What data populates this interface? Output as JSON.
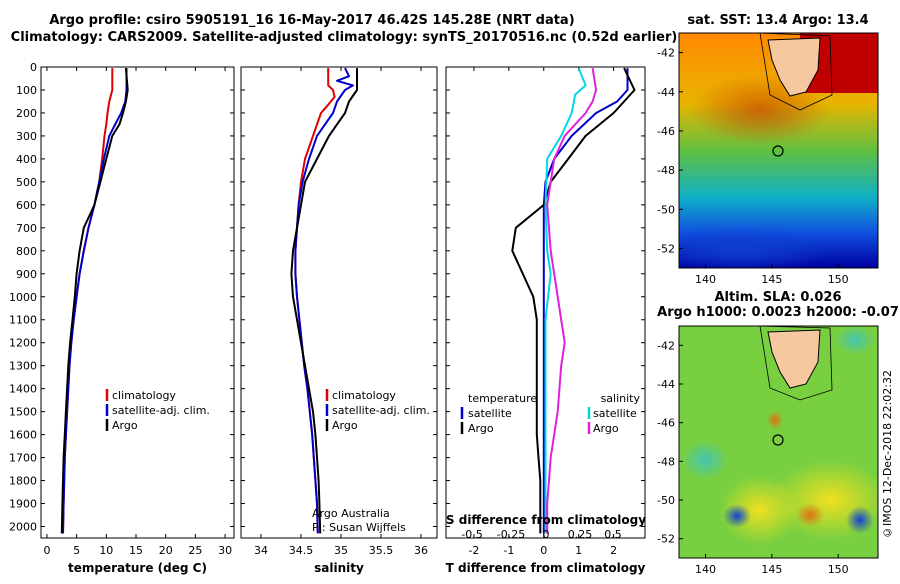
{
  "title_line1": "Argo profile: csiro 5905191_16 16-May-2017 46.42S 145.28E (NRT data)",
  "title_line2": "Climatology: CARS2009. Satellite-adjusted climatology: synTS_20170516.nc (0.52d earlier)",
  "credit": "©IMOS 12-Dec-2018 22:02:32",
  "attribution": [
    "Argo Australia",
    "PI: Susan Wijffels"
  ],
  "colors": {
    "climatology": "#e00000",
    "satellite": "#0000cc",
    "argo": "#000000",
    "sat_salinity": "#00d8e8",
    "argo_salinity": "#e020e0"
  },
  "chart_data": [
    {
      "type": "line",
      "id": "temperature",
      "xlabel": "temperature (deg C)",
      "ylim": [
        2050,
        0
      ],
      "xlim": [
        -1,
        31.5
      ],
      "xticks": [
        0,
        5,
        10,
        15,
        20,
        25,
        30
      ],
      "yticks": [
        0,
        100,
        200,
        300,
        400,
        500,
        600,
        700,
        800,
        900,
        1000,
        1100,
        1200,
        1300,
        1400,
        1500,
        1600,
        1700,
        1800,
        1900,
        2000
      ],
      "legend": [
        "climatology",
        "satellite-adj. clim.",
        "Argo"
      ],
      "series": [
        {
          "name": "climatology",
          "color": "#e00000",
          "points": [
            [
              11.0,
              5
            ],
            [
              11.0,
              50
            ],
            [
              11.0,
              100
            ],
            [
              10.5,
              150
            ],
            [
              10.2,
              200
            ],
            [
              10.0,
              250
            ],
            [
              9.7,
              300
            ],
            [
              9.3,
              400
            ],
            [
              8.8,
              500
            ],
            [
              8.0,
              600
            ],
            [
              7.0,
              700
            ],
            [
              6.2,
              800
            ],
            [
              5.5,
              900
            ],
            [
              5.0,
              1000
            ],
            [
              4.5,
              1100
            ],
            [
              4.1,
              1200
            ],
            [
              3.8,
              1300
            ],
            [
              3.6,
              1400
            ],
            [
              3.4,
              1500
            ],
            [
              3.2,
              1600
            ],
            [
              3.0,
              1700
            ],
            [
              2.9,
              1800
            ],
            [
              2.8,
              1900
            ],
            [
              2.7,
              2030
            ]
          ]
        },
        {
          "name": "satellite-adj. clim.",
          "color": "#0000cc",
          "points": [
            [
              13.4,
              5
            ],
            [
              13.4,
              50
            ],
            [
              13.4,
              100
            ],
            [
              13.2,
              150
            ],
            [
              12.5,
              200
            ],
            [
              11.5,
              250
            ],
            [
              10.5,
              300
            ],
            [
              9.6,
              400
            ],
            [
              8.8,
              500
            ],
            [
              8.0,
              600
            ],
            [
              7.0,
              700
            ],
            [
              6.2,
              800
            ],
            [
              5.5,
              900
            ],
            [
              5.0,
              1000
            ],
            [
              4.5,
              1100
            ],
            [
              4.1,
              1200
            ],
            [
              3.8,
              1300
            ],
            [
              3.6,
              1400
            ],
            [
              3.4,
              1500
            ],
            [
              3.2,
              1600
            ],
            [
              3.0,
              1700
            ],
            [
              2.9,
              1800
            ],
            [
              2.8,
              1900
            ],
            [
              2.7,
              2030
            ]
          ]
        },
        {
          "name": "Argo",
          "color": "#000000",
          "points": [
            [
              13.3,
              5
            ],
            [
              13.6,
              100
            ],
            [
              13.3,
              150
            ],
            [
              12.8,
              200
            ],
            [
              12.2,
              250
            ],
            [
              11.0,
              300
            ],
            [
              10.0,
              400
            ],
            [
              9.0,
              500
            ],
            [
              8.0,
              600
            ],
            [
              6.2,
              700
            ],
            [
              5.5,
              800
            ],
            [
              5.0,
              900
            ],
            [
              4.7,
              1000
            ],
            [
              4.3,
              1100
            ],
            [
              3.9,
              1200
            ],
            [
              3.6,
              1300
            ],
            [
              3.4,
              1400
            ],
            [
              3.2,
              1500
            ],
            [
              3.0,
              1600
            ],
            [
              2.8,
              1700
            ],
            [
              2.7,
              1800
            ],
            [
              2.6,
              1900
            ],
            [
              2.5,
              2030
            ]
          ]
        }
      ]
    },
    {
      "type": "line",
      "id": "salinity",
      "xlabel": "salinity",
      "ylim": [
        2050,
        0
      ],
      "xlim": [
        33.75,
        36.2
      ],
      "xticks": [
        34,
        34.5,
        35,
        35.5,
        36
      ],
      "xticklabels": [
        "34",
        "34.5",
        "35",
        "35.5",
        "36"
      ],
      "legend": [
        "climatology",
        "satellite-adj. clim.",
        "Argo"
      ],
      "series": [
        {
          "name": "climatology",
          "color": "#e00000",
          "points": [
            [
              34.84,
              5
            ],
            [
              34.84,
              80
            ],
            [
              34.9,
              100
            ],
            [
              34.92,
              130
            ],
            [
              34.85,
              160
            ],
            [
              34.75,
              200
            ],
            [
              34.65,
              300
            ],
            [
              34.55,
              400
            ],
            [
              34.5,
              500
            ],
            [
              34.47,
              600
            ],
            [
              34.45,
              700
            ],
            [
              34.43,
              800
            ],
            [
              34.43,
              900
            ],
            [
              34.45,
              1000
            ],
            [
              34.48,
              1100
            ],
            [
              34.51,
              1200
            ],
            [
              34.54,
              1300
            ],
            [
              34.58,
              1400
            ],
            [
              34.61,
              1500
            ],
            [
              34.64,
              1600
            ],
            [
              34.66,
              1700
            ],
            [
              34.68,
              1800
            ],
            [
              34.7,
              1900
            ],
            [
              34.71,
              2030
            ]
          ]
        },
        {
          "name": "satellite-adj. clim.",
          "color": "#0000cc",
          "points": [
            [
              35.05,
              5
            ],
            [
              35.1,
              40
            ],
            [
              34.95,
              60
            ],
            [
              35.15,
              80
            ],
            [
              35.05,
              100
            ],
            [
              34.95,
              150
            ],
            [
              34.9,
              200
            ],
            [
              34.7,
              300
            ],
            [
              34.6,
              400
            ],
            [
              34.52,
              500
            ],
            [
              34.47,
              600
            ],
            [
              34.45,
              700
            ],
            [
              34.43,
              800
            ],
            [
              34.43,
              900
            ],
            [
              34.45,
              1000
            ],
            [
              34.48,
              1100
            ],
            [
              34.51,
              1200
            ],
            [
              34.54,
              1300
            ],
            [
              34.58,
              1400
            ],
            [
              34.61,
              1500
            ],
            [
              34.64,
              1600
            ],
            [
              34.66,
              1700
            ],
            [
              34.68,
              1800
            ],
            [
              34.7,
              1900
            ],
            [
              34.71,
              2030
            ]
          ]
        },
        {
          "name": "Argo",
          "color": "#000000",
          "points": [
            [
              35.2,
              5
            ],
            [
              35.2,
              100
            ],
            [
              35.1,
              150
            ],
            [
              35.05,
              200
            ],
            [
              34.85,
              300
            ],
            [
              34.7,
              400
            ],
            [
              34.55,
              500
            ],
            [
              34.5,
              600
            ],
            [
              34.45,
              700
            ],
            [
              34.4,
              800
            ],
            [
              34.38,
              900
            ],
            [
              34.4,
              1000
            ],
            [
              34.45,
              1100
            ],
            [
              34.5,
              1200
            ],
            [
              34.55,
              1300
            ],
            [
              34.6,
              1400
            ],
            [
              34.65,
              1500
            ],
            [
              34.68,
              1600
            ],
            [
              34.7,
              1700
            ],
            [
              34.72,
              1800
            ],
            [
              34.73,
              1900
            ],
            [
              34.74,
              2030
            ]
          ]
        }
      ]
    },
    {
      "type": "line",
      "id": "difference",
      "xlabel": "T difference from climatology",
      "xlabel_top": "S difference from climatology",
      "ylim": [
        2050,
        0
      ],
      "xlim": [
        -2.8,
        2.9
      ],
      "xticks": [
        -2,
        -1,
        0,
        1,
        2
      ],
      "xticks_salinity": [
        "-0.5",
        "-0.25",
        "0",
        "0.25",
        "0.5"
      ],
      "legend_temperature": {
        "title": "temperature",
        "items": [
          "satellite",
          "Argo"
        ]
      },
      "legend_salinity": {
        "title": "salinity",
        "items": [
          "satellite",
          "Argo"
        ]
      },
      "series": [
        {
          "name": "temperature satellite",
          "color": "#0000cc",
          "points": [
            [
              2.4,
              5
            ],
            [
              2.4,
              100
            ],
            [
              2.1,
              150
            ],
            [
              1.5,
              200
            ],
            [
              0.8,
              300
            ],
            [
              0.3,
              400
            ],
            [
              0.05,
              500
            ],
            [
              0,
              600
            ],
            [
              0,
              2030
            ]
          ]
        },
        {
          "name": "temperature Argo",
          "color": "#000000",
          "points": [
            [
              2.3,
              5
            ],
            [
              2.6,
              100
            ],
            [
              2.3,
              150
            ],
            [
              2.0,
              200
            ],
            [
              1.2,
              300
            ],
            [
              0.7,
              400
            ],
            [
              0.2,
              500
            ],
            [
              0,
              600
            ],
            [
              -0.8,
              700
            ],
            [
              -0.9,
              800
            ],
            [
              -0.6,
              900
            ],
            [
              -0.3,
              1000
            ],
            [
              -0.2,
              1100
            ],
            [
              -0.2,
              1200
            ],
            [
              -0.2,
              1300
            ],
            [
              -0.2,
              1400
            ],
            [
              -0.2,
              1500
            ],
            [
              -0.2,
              1600
            ],
            [
              -0.15,
              1700
            ],
            [
              -0.1,
              1800
            ],
            [
              -0.1,
              1900
            ],
            [
              -0.1,
              2030
            ]
          ]
        },
        {
          "name": "salinity satellite",
          "color": "#00d8e8",
          "points": [
            [
              1.0,
              5
            ],
            [
              1.2,
              80
            ],
            [
              0.9,
              120
            ],
            [
              0.8,
              200
            ],
            [
              0.5,
              300
            ],
            [
              0.1,
              400
            ],
            [
              0.05,
              600
            ],
            [
              0.1,
              800
            ],
            [
              0.2,
              900
            ],
            [
              0.05,
              1100
            ],
            [
              0.05,
              2030
            ]
          ]
        },
        {
          "name": "salinity Argo",
          "color": "#e020e0",
          "points": [
            [
              1.4,
              5
            ],
            [
              1.5,
              100
            ],
            [
              1.4,
              150
            ],
            [
              1.2,
              200
            ],
            [
              0.6,
              300
            ],
            [
              0.3,
              400
            ],
            [
              0.1,
              600
            ],
            [
              0.2,
              800
            ],
            [
              0.3,
              900
            ],
            [
              0.4,
              1000
            ],
            [
              0.5,
              1100
            ],
            [
              0.6,
              1200
            ],
            [
              0.5,
              1300
            ],
            [
              0.4,
              1500
            ],
            [
              0.3,
              1600
            ],
            [
              0.2,
              1700
            ],
            [
              0.15,
              1800
            ],
            [
              0.1,
              1900
            ],
            [
              0.1,
              2030
            ]
          ]
        }
      ]
    },
    {
      "type": "heatmap",
      "id": "sst-map",
      "title": "sat. SST: 13.4 Argo: 13.4",
      "xticks": [
        140,
        145,
        150
      ],
      "yticks": [
        -42,
        -44,
        -46,
        -48,
        -50,
        -52
      ],
      "xlim": [
        138,
        153
      ],
      "ylim": [
        -53,
        -41
      ]
    },
    {
      "type": "heatmap",
      "id": "sla-map",
      "title_line1": "Altim. SLA: 0.026",
      "title_line2": "Argo h1000: 0.0023 h2000: -0.07",
      "xticks": [
        140,
        145,
        150
      ],
      "yticks": [
        -42,
        -44,
        -46,
        -48,
        -50,
        -52
      ],
      "xlim": [
        138,
        153
      ],
      "ylim": [
        -53,
        -41
      ]
    }
  ]
}
